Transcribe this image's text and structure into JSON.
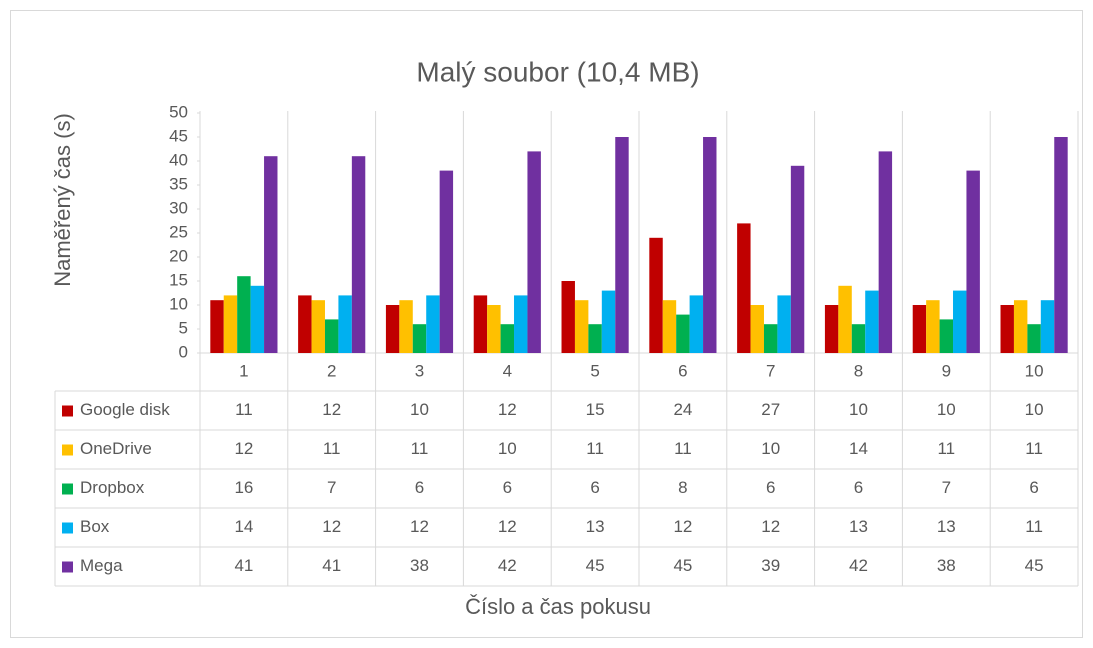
{
  "chart_data": {
    "type": "bar",
    "title": "Malý soubor (10,4 MB)",
    "y_label": "Naměřený čas (s)",
    "x_label": "Číslo a čas pokusu",
    "categories": [
      "1",
      "2",
      "3",
      "4",
      "5",
      "6",
      "7",
      "8",
      "9",
      "10"
    ],
    "series": [
      {
        "name": "Google disk",
        "color": "#c00000",
        "values": [
          11,
          12,
          10,
          12,
          15,
          24,
          27,
          10,
          10,
          10
        ]
      },
      {
        "name": "OneDrive",
        "color": "#ffc000",
        "values": [
          12,
          11,
          11,
          10,
          11,
          11,
          10,
          14,
          11,
          11
        ]
      },
      {
        "name": "Dropbox",
        "color": "#00b050",
        "values": [
          16,
          7,
          6,
          6,
          6,
          8,
          6,
          6,
          7,
          6
        ]
      },
      {
        "name": "Box",
        "color": "#00b0f0",
        "values": [
          14,
          12,
          12,
          12,
          13,
          12,
          12,
          13,
          13,
          11
        ]
      },
      {
        "name": "Mega",
        "color": "#7030a0",
        "values": [
          41,
          41,
          38,
          42,
          45,
          45,
          39,
          42,
          38,
          45
        ]
      }
    ],
    "ylim": [
      0,
      50
    ],
    "yticks": [
      0,
      5,
      10,
      15,
      20,
      25,
      30,
      35,
      40,
      45,
      50
    ],
    "data_table": true
  }
}
